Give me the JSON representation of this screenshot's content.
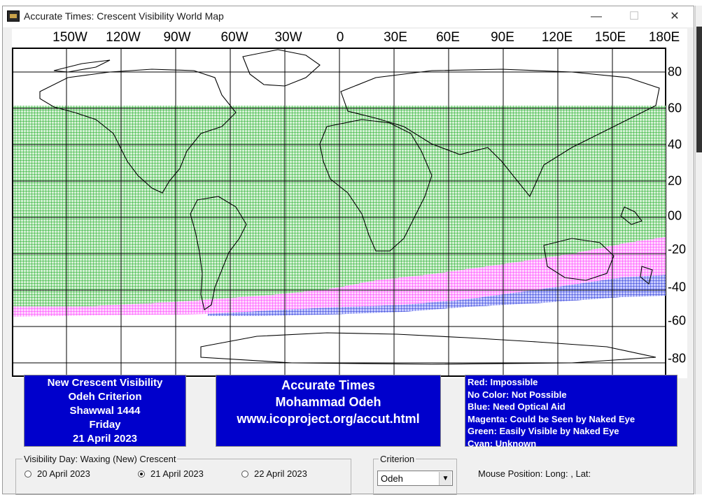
{
  "window": {
    "title": "Accurate Times: Crescent Visibility World Map",
    "minimize_glyph": "—",
    "maximize_glyph": "☐",
    "close_glyph": "✕"
  },
  "map": {
    "longitude_labels": [
      "150W",
      "120W",
      "90W",
      "60W",
      "30W",
      "0",
      "30E",
      "60E",
      "90E",
      "120E",
      "150E",
      "180E"
    ],
    "latitude_labels": [
      "80",
      "60",
      "40",
      "20",
      "00",
      "-20",
      "-40",
      "-60",
      "-80"
    ],
    "zone_colors": {
      "green": "#12a81a",
      "magenta": "#ff33ff",
      "blue": "#1a2ad0",
      "grid": "#000000"
    }
  },
  "info_left": {
    "lines": [
      "New Crescent Visibility",
      "Odeh Criterion",
      "Shawwal 1444",
      "Friday",
      "21 April 2023"
    ]
  },
  "info_center": {
    "lines": [
      "Accurate Times",
      "Mohammad Odeh",
      "www.icoproject.org/accut.html"
    ]
  },
  "legend": {
    "lines": [
      "Red: Impossible",
      "No Color: Not Possible",
      "Blue: Need Optical Aid",
      "Magenta: Could be Seen by Naked Eye",
      "Green: Easily Visible by Naked Eye",
      "Cyan: Unknown"
    ]
  },
  "visibility_day": {
    "group_label": "Visibility Day: Waxing (New) Crescent",
    "options": [
      {
        "label": "20 April 2023",
        "selected": false
      },
      {
        "label": "21 April 2023",
        "selected": true
      },
      {
        "label": "22 April 2023",
        "selected": false
      }
    ]
  },
  "criterion": {
    "group_label": "Criterion",
    "selected": "Odeh"
  },
  "mouse_position": "Mouse Position: Long: , Lat:"
}
